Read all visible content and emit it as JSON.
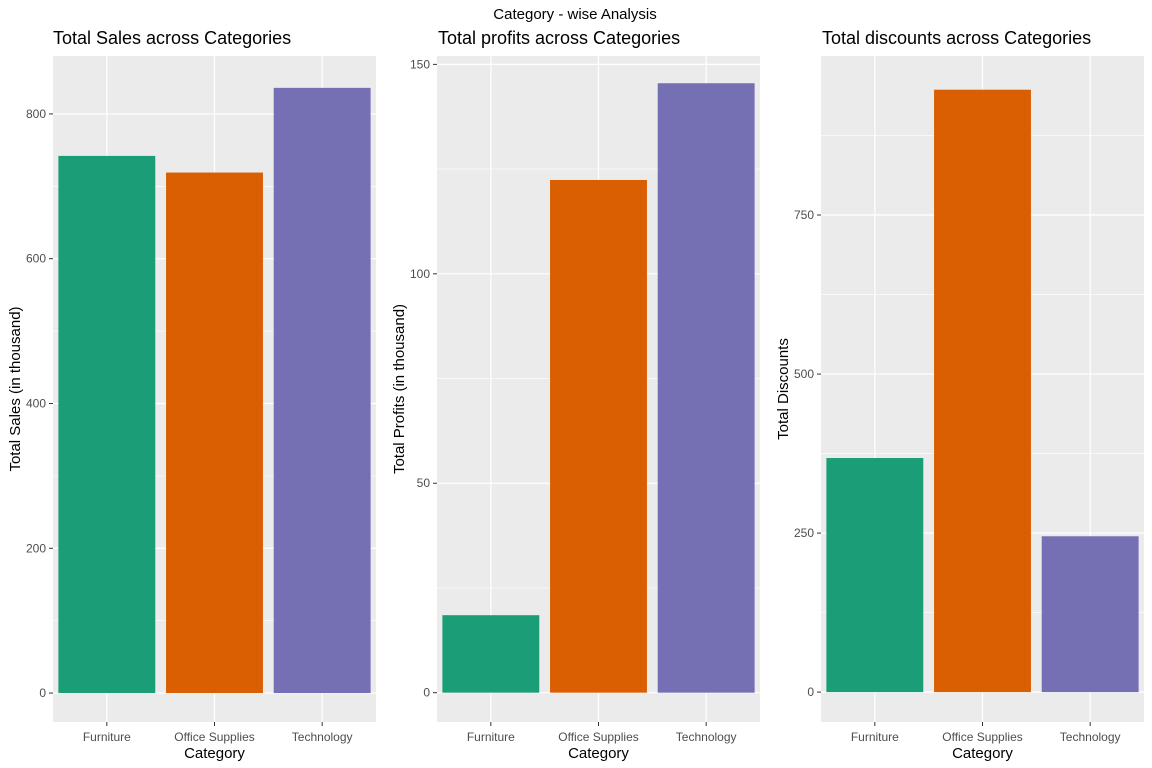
{
  "figure_title": "Category - wise Analysis",
  "palette": [
    "#1b9e77",
    "#d95f02",
    "#7570b3"
  ],
  "panel_background": "#ebebeb",
  "grid_color": "#ffffff",
  "chart_data": [
    {
      "type": "bar",
      "title": "Total Sales across Categories",
      "xlabel": "Category",
      "ylabel": "Total Sales (in thousand)",
      "categories": [
        "Furniture",
        "Office Supplies",
        "Technology"
      ],
      "values": [
        742,
        719,
        836
      ],
      "ylim": [
        -40,
        880
      ],
      "yticks": [
        0,
        200,
        400,
        600,
        800
      ],
      "grid": true,
      "legend": "none"
    },
    {
      "type": "bar",
      "title": "Total profits across Categories",
      "xlabel": "Category",
      "ylabel": "Total Profits (in thousand)",
      "categories": [
        "Furniture",
        "Office Supplies",
        "Technology"
      ],
      "values": [
        18.5,
        122.4,
        145.5
      ],
      "ylim": [
        -7,
        152
      ],
      "yticks": [
        0,
        50,
        100,
        150
      ],
      "grid": true,
      "legend": "none"
    },
    {
      "type": "bar",
      "title": "Total discounts across Categories",
      "xlabel": "Category",
      "ylabel": "Total Discounts",
      "categories": [
        "Furniture",
        "Office Supplies",
        "Technology"
      ],
      "values": [
        368,
        947,
        245
      ],
      "ylim": [
        -47,
        1000
      ],
      "yticks": [
        0,
        250,
        500,
        750
      ],
      "grid": true,
      "legend": "none"
    }
  ]
}
